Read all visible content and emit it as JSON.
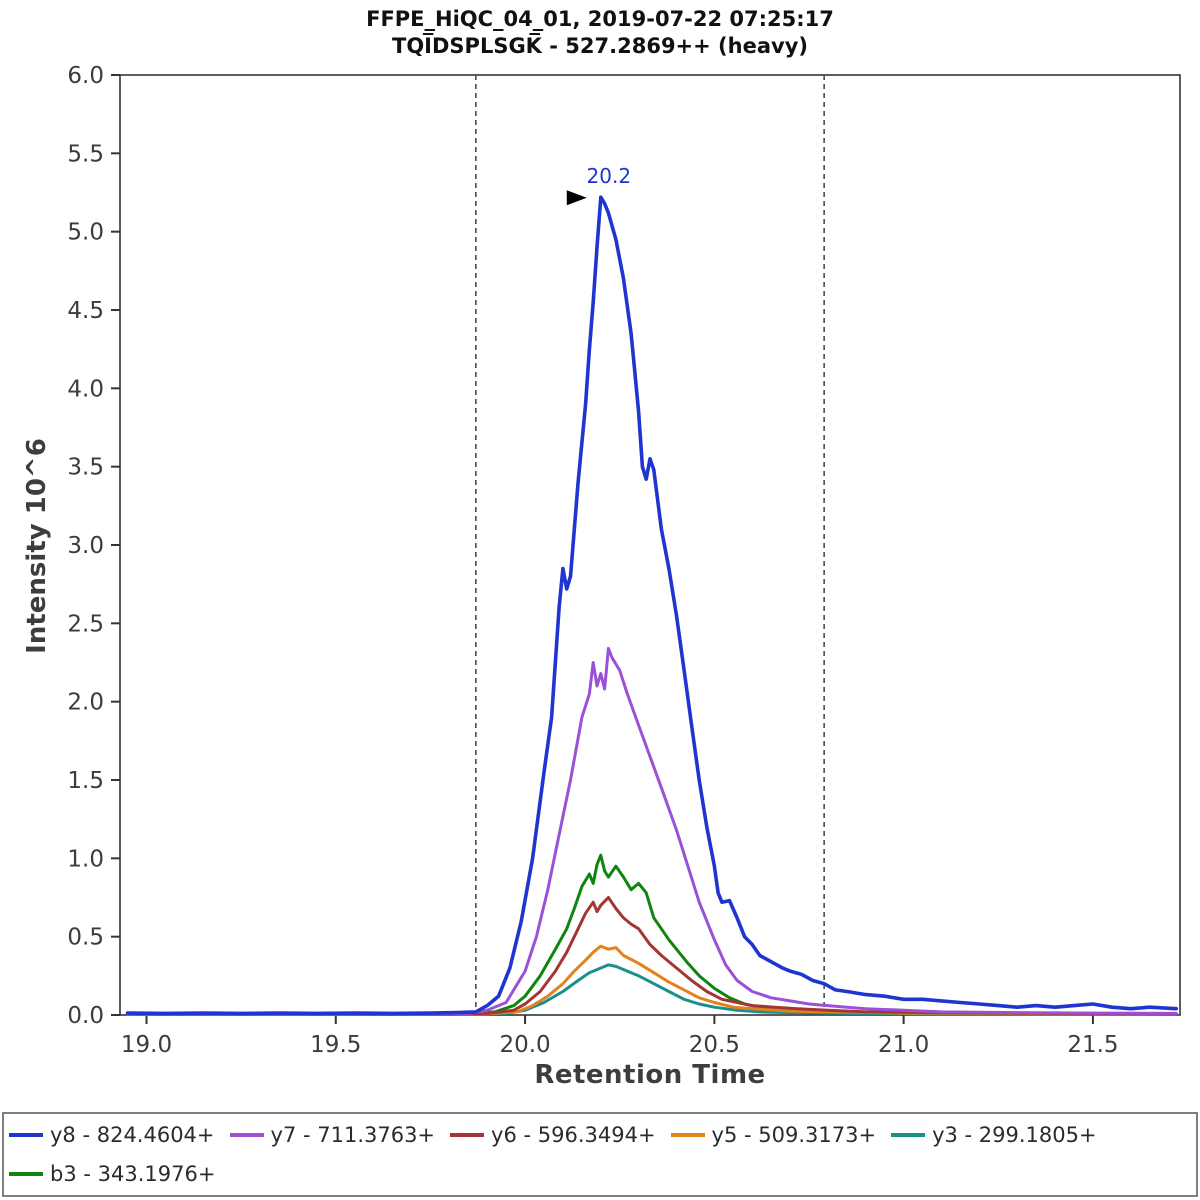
{
  "title": {
    "line1": "FFPE_HiQC_04_01, 2019-07-22 07:25:17",
    "line2": "TQI̅DSPLSGK̅ - 527.2869++ (heavy)"
  },
  "chart_data": {
    "type": "line",
    "title": "FFPE_HiQC_04_01, 2019-07-22 07:25:17 / TQIDSPLSGK - 527.2869++ (heavy)",
    "xlabel": "Retention Time",
    "ylabel": "Intensity 10^6",
    "xlim": [
      18.93,
      21.73
    ],
    "ylim": [
      0,
      6.0
    ],
    "x_ticks": [
      19.0,
      19.5,
      20.0,
      20.5,
      21.0,
      21.5
    ],
    "y_ticks": [
      0.0,
      0.5,
      1.0,
      1.5,
      2.0,
      2.5,
      3.0,
      3.5,
      4.0,
      4.5,
      5.0,
      5.5,
      6.0
    ],
    "grid": false,
    "axis_color": "#333333",
    "boundary_color": "#4a4a4a",
    "peak_boundaries": [
      19.87,
      20.79
    ],
    "peak_annotation": {
      "label": "20.2",
      "x": 20.2,
      "y": 5.22,
      "text_color": "#1f35cf",
      "arrow_color": "#000000"
    },
    "legend": {
      "position": "bottom",
      "rows": [
        [
          "y8",
          "y7",
          "y6",
          "y5",
          "y3"
        ],
        [
          "b3"
        ]
      ]
    },
    "series": [
      {
        "id": "y8",
        "name": "y8 - 824.4604+",
        "color": "#1f35cf",
        "points": [
          [
            18.95,
            0.012
          ],
          [
            19.05,
            0.01
          ],
          [
            19.15,
            0.012
          ],
          [
            19.25,
            0.01
          ],
          [
            19.35,
            0.012
          ],
          [
            19.45,
            0.01
          ],
          [
            19.55,
            0.012
          ],
          [
            19.65,
            0.01
          ],
          [
            19.75,
            0.012
          ],
          [
            19.82,
            0.015
          ],
          [
            19.87,
            0.02
          ],
          [
            19.9,
            0.06
          ],
          [
            19.93,
            0.12
          ],
          [
            19.96,
            0.3
          ],
          [
            19.99,
            0.6
          ],
          [
            20.02,
            1.0
          ],
          [
            20.05,
            1.55
          ],
          [
            20.07,
            1.9
          ],
          [
            20.09,
            2.6
          ],
          [
            20.1,
            2.85
          ],
          [
            20.11,
            2.72
          ],
          [
            20.12,
            2.8
          ],
          [
            20.14,
            3.4
          ],
          [
            20.16,
            3.9
          ],
          [
            20.17,
            4.25
          ],
          [
            20.18,
            4.55
          ],
          [
            20.19,
            4.9
          ],
          [
            20.2,
            5.22
          ],
          [
            20.21,
            5.18
          ],
          [
            20.22,
            5.12
          ],
          [
            20.24,
            4.95
          ],
          [
            20.26,
            4.7
          ],
          [
            20.28,
            4.35
          ],
          [
            20.29,
            4.1
          ],
          [
            20.3,
            3.85
          ],
          [
            20.31,
            3.5
          ],
          [
            20.32,
            3.42
          ],
          [
            20.33,
            3.55
          ],
          [
            20.34,
            3.48
          ],
          [
            20.36,
            3.1
          ],
          [
            20.38,
            2.85
          ],
          [
            20.4,
            2.55
          ],
          [
            20.42,
            2.2
          ],
          [
            20.44,
            1.85
          ],
          [
            20.46,
            1.5
          ],
          [
            20.48,
            1.2
          ],
          [
            20.5,
            0.95
          ],
          [
            20.51,
            0.78
          ],
          [
            20.52,
            0.72
          ],
          [
            20.54,
            0.73
          ],
          [
            20.56,
            0.62
          ],
          [
            20.58,
            0.5
          ],
          [
            20.6,
            0.45
          ],
          [
            20.62,
            0.38
          ],
          [
            20.65,
            0.34
          ],
          [
            20.68,
            0.3
          ],
          [
            20.7,
            0.28
          ],
          [
            20.73,
            0.26
          ],
          [
            20.76,
            0.22
          ],
          [
            20.79,
            0.2
          ],
          [
            20.82,
            0.16
          ],
          [
            20.85,
            0.15
          ],
          [
            20.9,
            0.13
          ],
          [
            20.95,
            0.12
          ],
          [
            21.0,
            0.1
          ],
          [
            21.05,
            0.1
          ],
          [
            21.1,
            0.09
          ],
          [
            21.15,
            0.08
          ],
          [
            21.2,
            0.07
          ],
          [
            21.25,
            0.06
          ],
          [
            21.3,
            0.05
          ],
          [
            21.35,
            0.06
          ],
          [
            21.4,
            0.05
          ],
          [
            21.45,
            0.06
          ],
          [
            21.5,
            0.07
          ],
          [
            21.55,
            0.05
          ],
          [
            21.6,
            0.04
          ],
          [
            21.65,
            0.05
          ],
          [
            21.72,
            0.04
          ]
        ]
      },
      {
        "id": "y7",
        "name": "y7 - 711.3763+",
        "color": "#9b50d6",
        "points": [
          [
            18.95,
            0.008
          ],
          [
            19.2,
            0.008
          ],
          [
            19.5,
            0.008
          ],
          [
            19.7,
            0.008
          ],
          [
            19.85,
            0.01
          ],
          [
            19.9,
            0.03
          ],
          [
            19.95,
            0.08
          ],
          [
            20.0,
            0.28
          ],
          [
            20.03,
            0.5
          ],
          [
            20.06,
            0.8
          ],
          [
            20.09,
            1.15
          ],
          [
            20.12,
            1.5
          ],
          [
            20.15,
            1.9
          ],
          [
            20.17,
            2.05
          ],
          [
            20.18,
            2.25
          ],
          [
            20.19,
            2.1
          ],
          [
            20.2,
            2.18
          ],
          [
            20.21,
            2.08
          ],
          [
            20.22,
            2.34
          ],
          [
            20.23,
            2.28
          ],
          [
            20.25,
            2.2
          ],
          [
            20.27,
            2.05
          ],
          [
            20.3,
            1.85
          ],
          [
            20.33,
            1.65
          ],
          [
            20.36,
            1.45
          ],
          [
            20.4,
            1.18
          ],
          [
            20.43,
            0.95
          ],
          [
            20.46,
            0.72
          ],
          [
            20.5,
            0.48
          ],
          [
            20.53,
            0.32
          ],
          [
            20.56,
            0.22
          ],
          [
            20.6,
            0.15
          ],
          [
            20.65,
            0.11
          ],
          [
            20.7,
            0.09
          ],
          [
            20.75,
            0.07
          ],
          [
            20.8,
            0.06
          ],
          [
            20.85,
            0.05
          ],
          [
            20.9,
            0.04
          ],
          [
            21.0,
            0.03
          ],
          [
            21.1,
            0.02
          ],
          [
            21.3,
            0.015
          ],
          [
            21.5,
            0.012
          ],
          [
            21.72,
            0.01
          ]
        ]
      },
      {
        "id": "y6",
        "name": "y6 - 596.3494+",
        "color": "#a53535",
        "points": [
          [
            18.95,
            0.006
          ],
          [
            19.4,
            0.006
          ],
          [
            19.8,
            0.006
          ],
          [
            19.9,
            0.01
          ],
          [
            19.97,
            0.03
          ],
          [
            20.0,
            0.07
          ],
          [
            20.04,
            0.15
          ],
          [
            20.08,
            0.28
          ],
          [
            20.11,
            0.4
          ],
          [
            20.14,
            0.55
          ],
          [
            20.16,
            0.65
          ],
          [
            20.18,
            0.72
          ],
          [
            20.19,
            0.66
          ],
          [
            20.2,
            0.7
          ],
          [
            20.22,
            0.75
          ],
          [
            20.24,
            0.68
          ],
          [
            20.26,
            0.62
          ],
          [
            20.28,
            0.58
          ],
          [
            20.3,
            0.55
          ],
          [
            20.33,
            0.45
          ],
          [
            20.36,
            0.38
          ],
          [
            20.4,
            0.3
          ],
          [
            20.44,
            0.22
          ],
          [
            20.48,
            0.15
          ],
          [
            20.52,
            0.1
          ],
          [
            20.56,
            0.08
          ],
          [
            20.6,
            0.06
          ],
          [
            20.66,
            0.05
          ],
          [
            20.72,
            0.04
          ],
          [
            20.8,
            0.03
          ],
          [
            20.9,
            0.02
          ],
          [
            21.1,
            0.015
          ],
          [
            21.4,
            0.01
          ],
          [
            21.72,
            0.008
          ]
        ]
      },
      {
        "id": "y5",
        "name": "y5 - 509.3173+",
        "color": "#e2821e",
        "points": [
          [
            18.95,
            0.005
          ],
          [
            19.5,
            0.005
          ],
          [
            19.9,
            0.008
          ],
          [
            19.98,
            0.02
          ],
          [
            20.02,
            0.06
          ],
          [
            20.06,
            0.12
          ],
          [
            20.1,
            0.2
          ],
          [
            20.13,
            0.28
          ],
          [
            20.16,
            0.35
          ],
          [
            20.18,
            0.4
          ],
          [
            20.2,
            0.44
          ],
          [
            20.22,
            0.42
          ],
          [
            20.24,
            0.43
          ],
          [
            20.26,
            0.38
          ],
          [
            20.3,
            0.33
          ],
          [
            20.34,
            0.27
          ],
          [
            20.38,
            0.21
          ],
          [
            20.42,
            0.16
          ],
          [
            20.46,
            0.11
          ],
          [
            20.5,
            0.08
          ],
          [
            20.55,
            0.05
          ],
          [
            20.6,
            0.04
          ],
          [
            20.7,
            0.025
          ],
          [
            20.8,
            0.02
          ],
          [
            21.0,
            0.012
          ],
          [
            21.3,
            0.01
          ],
          [
            21.72,
            0.008
          ]
        ]
      },
      {
        "id": "y3",
        "name": "y3 - 299.1805+",
        "color": "#1a8f8f",
        "points": [
          [
            18.95,
            0.004
          ],
          [
            19.6,
            0.004
          ],
          [
            19.95,
            0.01
          ],
          [
            20.0,
            0.03
          ],
          [
            20.05,
            0.08
          ],
          [
            20.1,
            0.15
          ],
          [
            20.14,
            0.22
          ],
          [
            20.17,
            0.27
          ],
          [
            20.2,
            0.3
          ],
          [
            20.22,
            0.32
          ],
          [
            20.24,
            0.31
          ],
          [
            20.27,
            0.28
          ],
          [
            20.3,
            0.25
          ],
          [
            20.34,
            0.2
          ],
          [
            20.38,
            0.15
          ],
          [
            20.42,
            0.1
          ],
          [
            20.46,
            0.07
          ],
          [
            20.5,
            0.05
          ],
          [
            20.56,
            0.03
          ],
          [
            20.62,
            0.02
          ],
          [
            20.7,
            0.015
          ],
          [
            20.85,
            0.01
          ],
          [
            21.1,
            0.008
          ],
          [
            21.5,
            0.006
          ],
          [
            21.72,
            0.005
          ]
        ]
      },
      {
        "id": "b3",
        "name": "b3 - 343.1976+",
        "color": "#108410",
        "points": [
          [
            18.95,
            0.006
          ],
          [
            19.3,
            0.006
          ],
          [
            19.6,
            0.006
          ],
          [
            19.85,
            0.008
          ],
          [
            19.92,
            0.02
          ],
          [
            19.97,
            0.06
          ],
          [
            20.0,
            0.12
          ],
          [
            20.04,
            0.25
          ],
          [
            20.08,
            0.42
          ],
          [
            20.11,
            0.55
          ],
          [
            20.13,
            0.68
          ],
          [
            20.15,
            0.82
          ],
          [
            20.17,
            0.9
          ],
          [
            20.18,
            0.84
          ],
          [
            20.19,
            0.96
          ],
          [
            20.2,
            1.02
          ],
          [
            20.21,
            0.92
          ],
          [
            20.22,
            0.88
          ],
          [
            20.24,
            0.95
          ],
          [
            20.26,
            0.88
          ],
          [
            20.28,
            0.8
          ],
          [
            20.3,
            0.84
          ],
          [
            20.32,
            0.78
          ],
          [
            20.34,
            0.62
          ],
          [
            20.36,
            0.55
          ],
          [
            20.38,
            0.48
          ],
          [
            20.4,
            0.42
          ],
          [
            20.43,
            0.33
          ],
          [
            20.46,
            0.25
          ],
          [
            20.5,
            0.17
          ],
          [
            20.54,
            0.11
          ],
          [
            20.58,
            0.07
          ],
          [
            20.62,
            0.05
          ],
          [
            20.68,
            0.03
          ],
          [
            20.75,
            0.02
          ],
          [
            20.85,
            0.015
          ],
          [
            21.0,
            0.01
          ],
          [
            21.2,
            0.008
          ],
          [
            21.5,
            0.008
          ],
          [
            21.72,
            0.006
          ]
        ]
      }
    ]
  }
}
